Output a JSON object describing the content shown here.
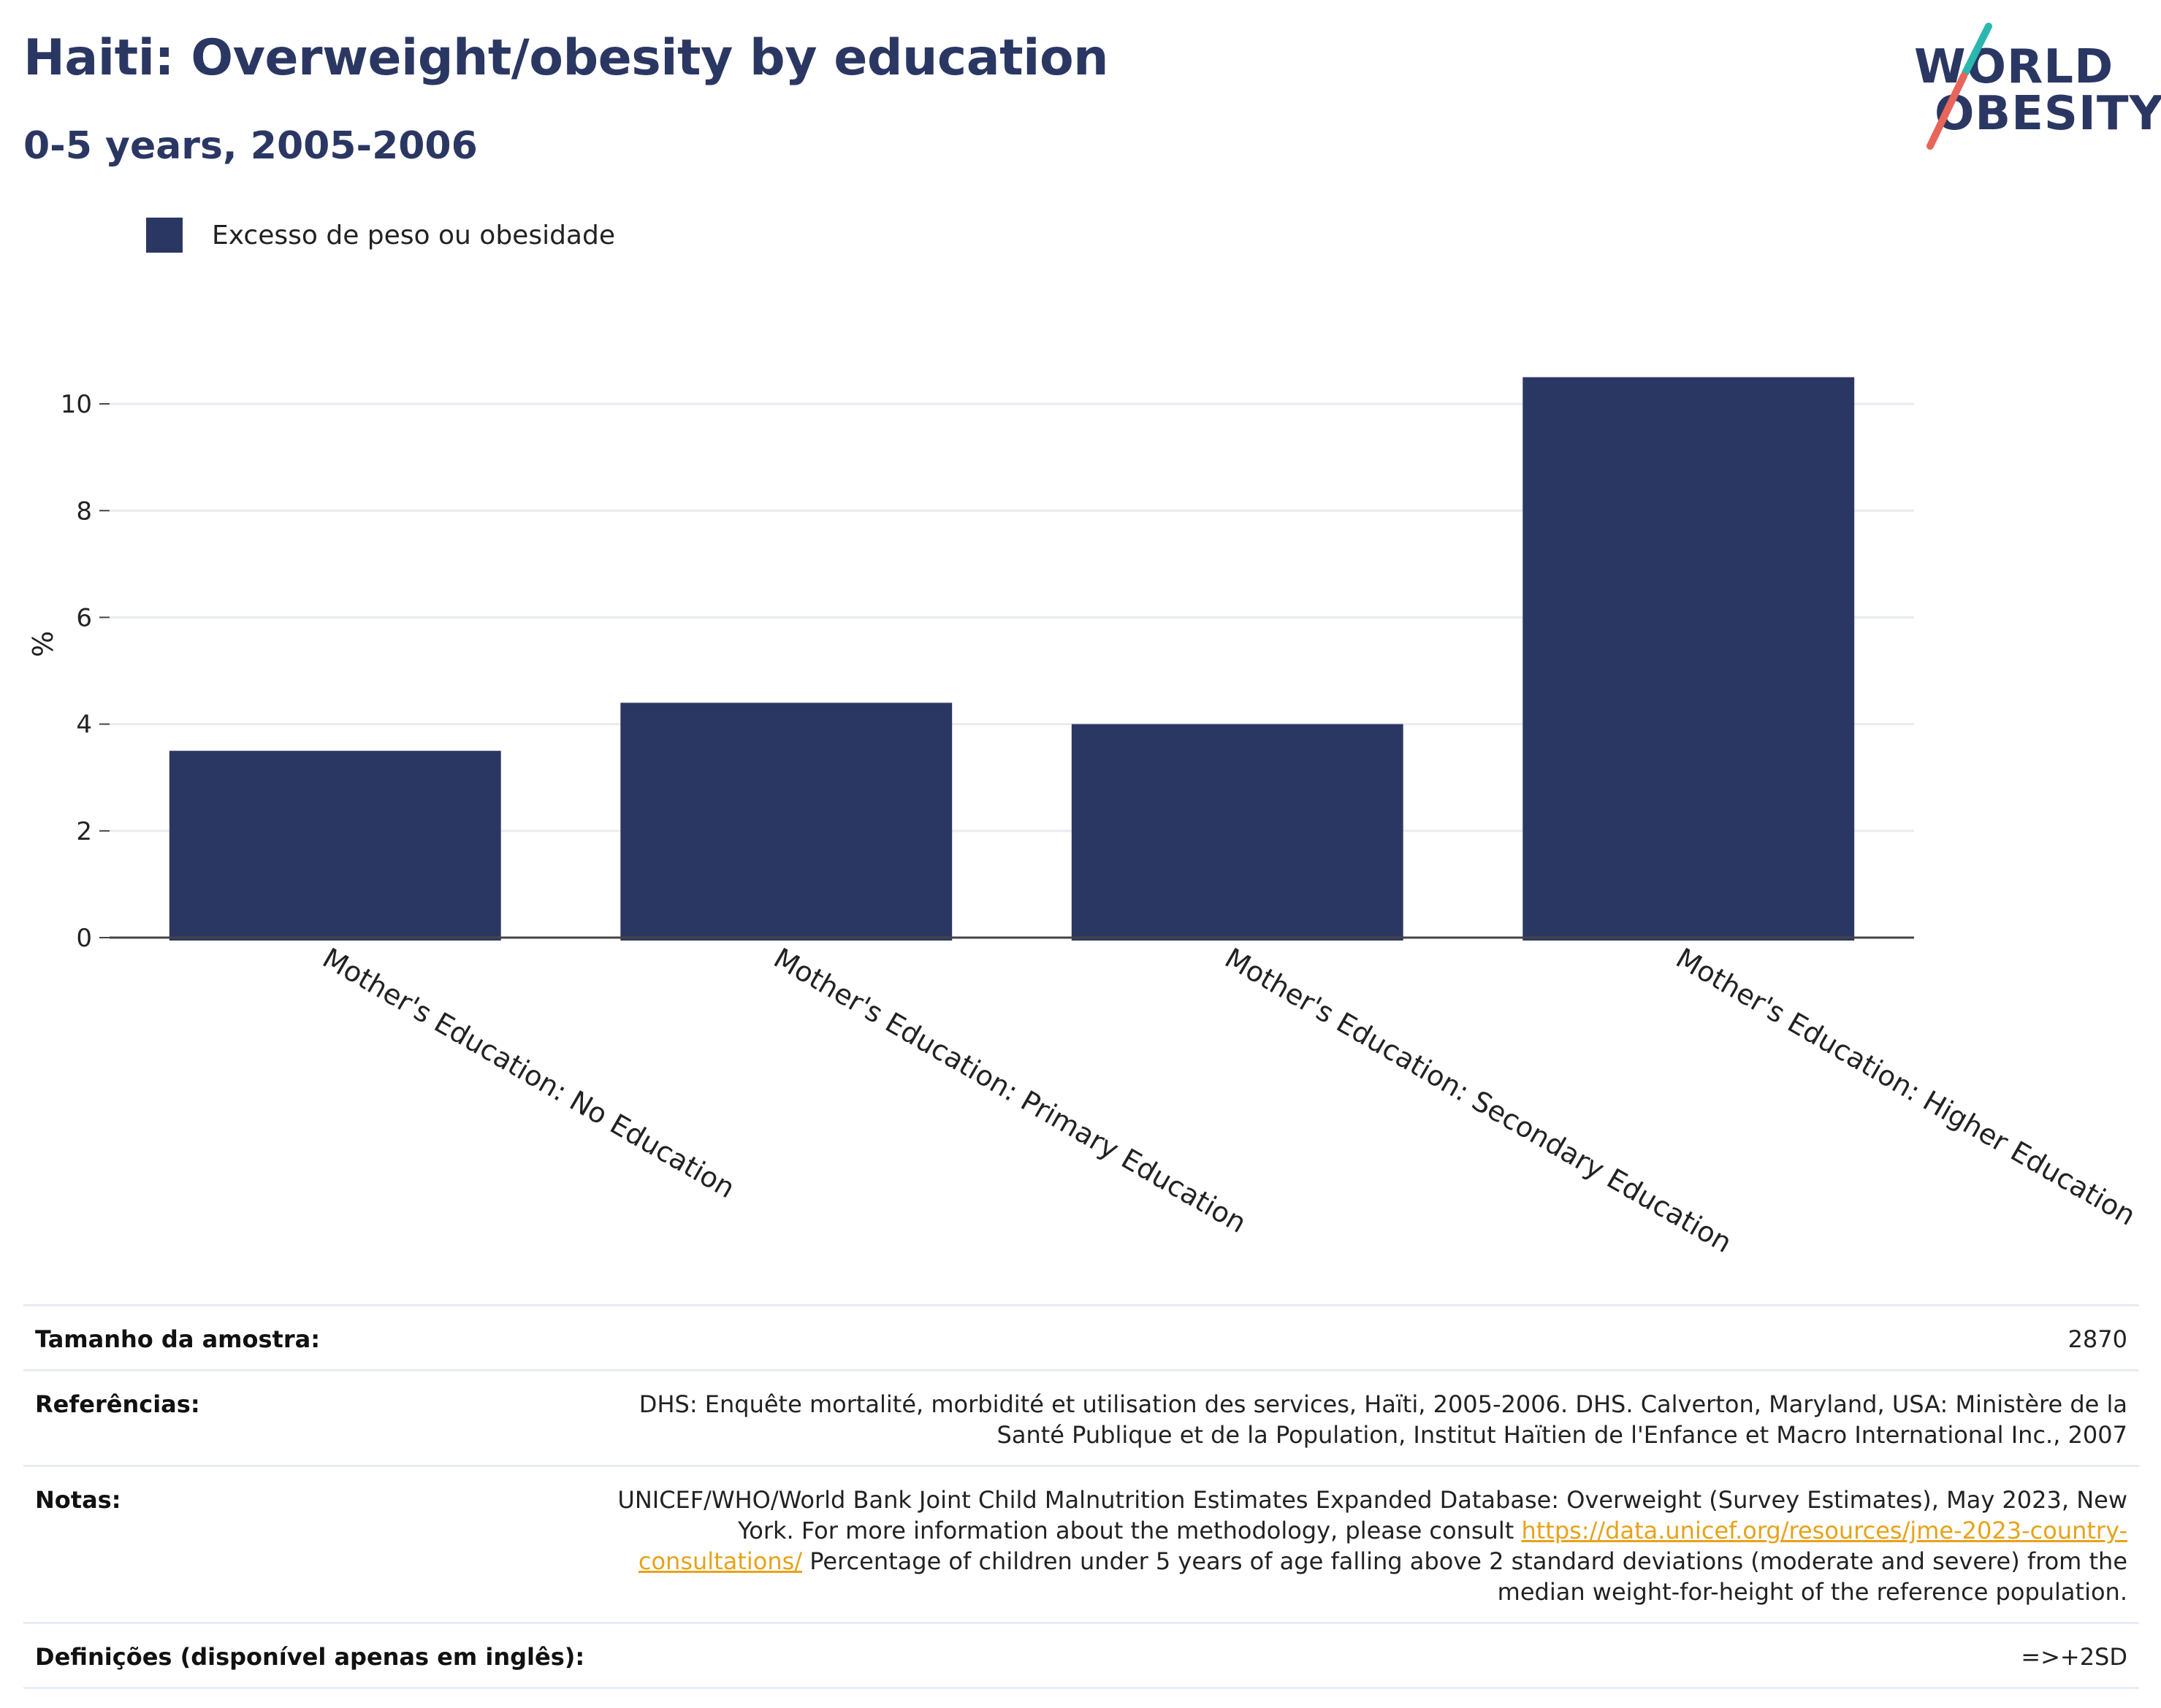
{
  "header": {
    "title": "Haiti: Overweight/obesity by education",
    "subtitle": "0-5 years, 2005-2006"
  },
  "logo": {
    "line1": "WORLD",
    "line2": "OBESITY",
    "accent_teal": "#2ab7b0",
    "accent_red": "#e8655a"
  },
  "legend": {
    "label": "Excesso de peso ou obesidade",
    "color": "#2b3763"
  },
  "chart_data": {
    "type": "bar",
    "categories": [
      "Mother's Education: No Education",
      "Mother's Education: Primary Education",
      "Mother's Education: Secondary Education",
      "Mother's Education: Higher Education"
    ],
    "series": [
      {
        "name": "Excesso de peso ou obesidade",
        "values": [
          3.5,
          4.4,
          4.0,
          10.5
        ],
        "color": "#2b3763"
      }
    ],
    "ylabel": "%",
    "xlabel": "",
    "ylim": [
      0,
      11
    ],
    "yticks": [
      0,
      2,
      4,
      6,
      8,
      10
    ],
    "grid": true,
    "legend_position": "top-left"
  },
  "meta": {
    "sample_label": "Tamanho da amostra:",
    "sample_value": "2870",
    "refs_label": "Referências:",
    "refs_value": "DHS: Enquête mortalité, morbidité et utilisation des services, Haïti, 2005-2006. DHS. Calverton, Maryland, USA: Ministère de la Santé Publique et de la Population, Institut Haïtien de l'Enfance et Macro International Inc., 2007",
    "notes_label": "Notas:",
    "notes_before": "UNICEF/WHO/World Bank Joint Child Malnutrition Estimates Expanded Database: Overweight (Survey Estimates), May 2023, New York. For more information about the methodology, please consult ",
    "notes_link": "https://data.unicef.org/resources/jme-2023-country-consultations/",
    "notes_after": " Percentage of children under 5 years of age falling above 2 standard deviations (moderate and severe) from the median weight-for-height of the reference population.",
    "defs_label": "Definições (disponível apenas em inglês):",
    "defs_value": "=>+2SD"
  }
}
